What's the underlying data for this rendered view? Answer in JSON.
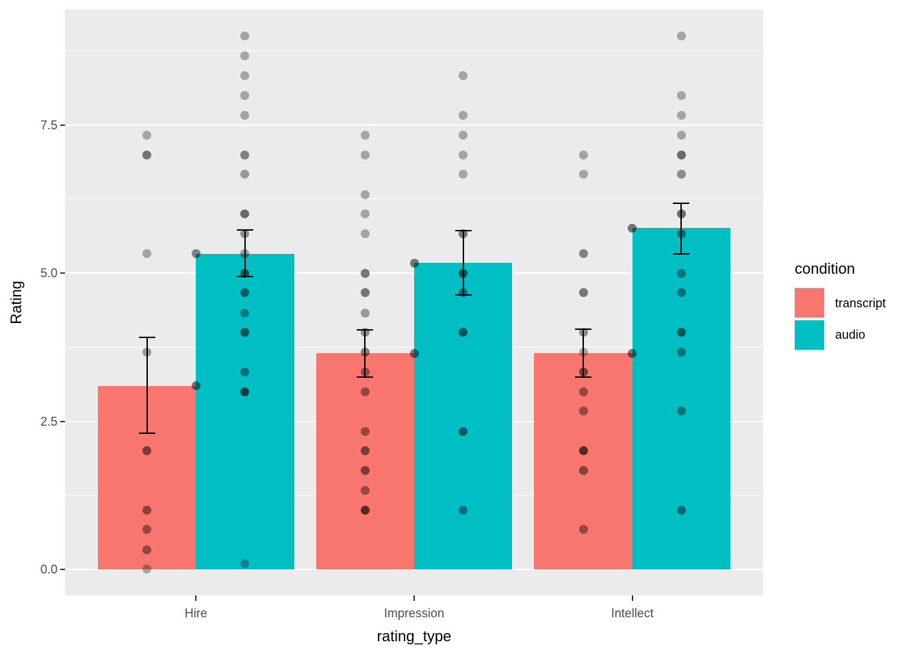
{
  "chart_data": {
    "type": "bar",
    "title": "",
    "xlabel": "rating_type",
    "ylabel": "Rating",
    "categories": [
      "Hire",
      "Impression",
      "Intellect"
    ],
    "y_ticks": [
      0,
      2.5,
      5,
      7.5
    ],
    "y_tick_labels": [
      "0.0",
      "2.5",
      "5.0",
      "7.5"
    ],
    "y_minor_gridlines": [
      1.25,
      3.75,
      6.25,
      8.75
    ],
    "ylim": [
      -0.44,
      9.45
    ],
    "grid": true,
    "legend": {
      "title": "condition",
      "position": "right",
      "entries": [
        {
          "label": "transcript",
          "color": "#F8766D"
        },
        {
          "label": "audio",
          "color": "#00BFC4"
        }
      ]
    },
    "series": [
      {
        "name": "transcript",
        "color": "#F8766D",
        "means": [
          3.1,
          3.65,
          3.65
        ],
        "error_low": [
          2.3,
          3.24,
          3.24
        ],
        "error_high": [
          3.92,
          4.04,
          4.06
        ]
      },
      {
        "name": "audio",
        "color": "#00BFC4",
        "means": [
          5.33,
          5.17,
          5.76
        ],
        "error_low": [
          4.94,
          4.63,
          5.33
        ],
        "error_high": [
          5.73,
          5.72,
          6.18
        ]
      }
    ],
    "jitter_points": {
      "Hire": {
        "transcript": [
          [
            7.33,
            0.3
          ],
          [
            7,
            0.5
          ],
          [
            5.33,
            0.3
          ],
          [
            3.67,
            0.35
          ],
          [
            2,
            0.5
          ],
          [
            1,
            0.45
          ],
          [
            0.67,
            0.4
          ],
          [
            0.33,
            0.4
          ],
          [
            0,
            0.3
          ]
        ],
        "audio": [
          [
            9,
            0.3
          ],
          [
            8.67,
            0.3
          ],
          [
            8.33,
            0.3
          ],
          [
            8,
            0.3
          ],
          [
            7.67,
            0.3
          ],
          [
            7,
            0.45
          ],
          [
            6.67,
            0.35
          ],
          [
            6,
            0.55
          ],
          [
            5.67,
            0.4
          ],
          [
            5.33,
            0.35
          ],
          [
            5,
            0.55
          ],
          [
            4.67,
            0.5
          ],
          [
            4.33,
            0.35
          ],
          [
            4,
            0.55
          ],
          [
            3.33,
            0.4
          ],
          [
            3,
            0.65
          ],
          [
            0.1,
            0.3
          ]
        ]
      },
      "Impression": {
        "transcript": [
          [
            7.33,
            0.3
          ],
          [
            7,
            0.3
          ],
          [
            6.33,
            0.3
          ],
          [
            6,
            0.3
          ],
          [
            5.67,
            0.3
          ],
          [
            5,
            0.5
          ],
          [
            4.67,
            0.5
          ],
          [
            4.33,
            0.35
          ],
          [
            4,
            0.4
          ],
          [
            3.67,
            0.45
          ],
          [
            3.33,
            0.4
          ],
          [
            3,
            0.4
          ],
          [
            2.33,
            0.4
          ],
          [
            2,
            0.5
          ],
          [
            1.67,
            0.5
          ],
          [
            1.33,
            0.4
          ],
          [
            1,
            0.65
          ]
        ],
        "audio": [
          [
            8.33,
            0.3
          ],
          [
            7.67,
            0.3
          ],
          [
            7.33,
            0.3
          ],
          [
            7,
            0.3
          ],
          [
            6.67,
            0.3
          ],
          [
            5.67,
            0.5
          ],
          [
            5,
            0.55
          ],
          [
            4.67,
            0.4
          ],
          [
            4,
            0.55
          ],
          [
            2.33,
            0.5
          ],
          [
            1,
            0.4
          ]
        ]
      },
      "Intellect": {
        "transcript": [
          [
            7,
            0.3
          ],
          [
            6.67,
            0.3
          ],
          [
            5.33,
            0.45
          ],
          [
            4.67,
            0.5
          ],
          [
            4,
            0.4
          ],
          [
            3.67,
            0.3
          ],
          [
            3.33,
            0.5
          ],
          [
            3,
            0.4
          ],
          [
            2.67,
            0.4
          ],
          [
            2,
            0.65
          ],
          [
            1.67,
            0.45
          ],
          [
            0.67,
            0.4
          ]
        ],
        "audio": [
          [
            9,
            0.3
          ],
          [
            8,
            0.3
          ],
          [
            7.67,
            0.3
          ],
          [
            7.33,
            0.3
          ],
          [
            7,
            0.55
          ],
          [
            6.67,
            0.4
          ],
          [
            6,
            0.55
          ],
          [
            5.67,
            0.4
          ],
          [
            5,
            0.4
          ],
          [
            4.67,
            0.4
          ],
          [
            4,
            0.55
          ],
          [
            3.67,
            0.4
          ],
          [
            2.67,
            0.4
          ],
          [
            1,
            0.45
          ]
        ]
      }
    },
    "group_mean_points": {
      "Hire": [
        [
          3.1,
          0.5
        ],
        [
          5.33,
          0.45
        ]
      ],
      "Impression": [
        [
          3.65,
          0.5
        ],
        [
          5.17,
          0.5
        ]
      ],
      "Intellect": [
        [
          3.65,
          0.5
        ],
        [
          5.76,
          0.5
        ]
      ]
    },
    "colors": {
      "panel_bg": "#EBEBEB",
      "grid": "#FFFFFF",
      "tick_label": "#4D4D4D",
      "tick_mark": "#333333",
      "axis_title": "#000000",
      "point": "#000000",
      "error_bar": "#000000",
      "legend_key_bg": "#F2F2F2"
    }
  }
}
